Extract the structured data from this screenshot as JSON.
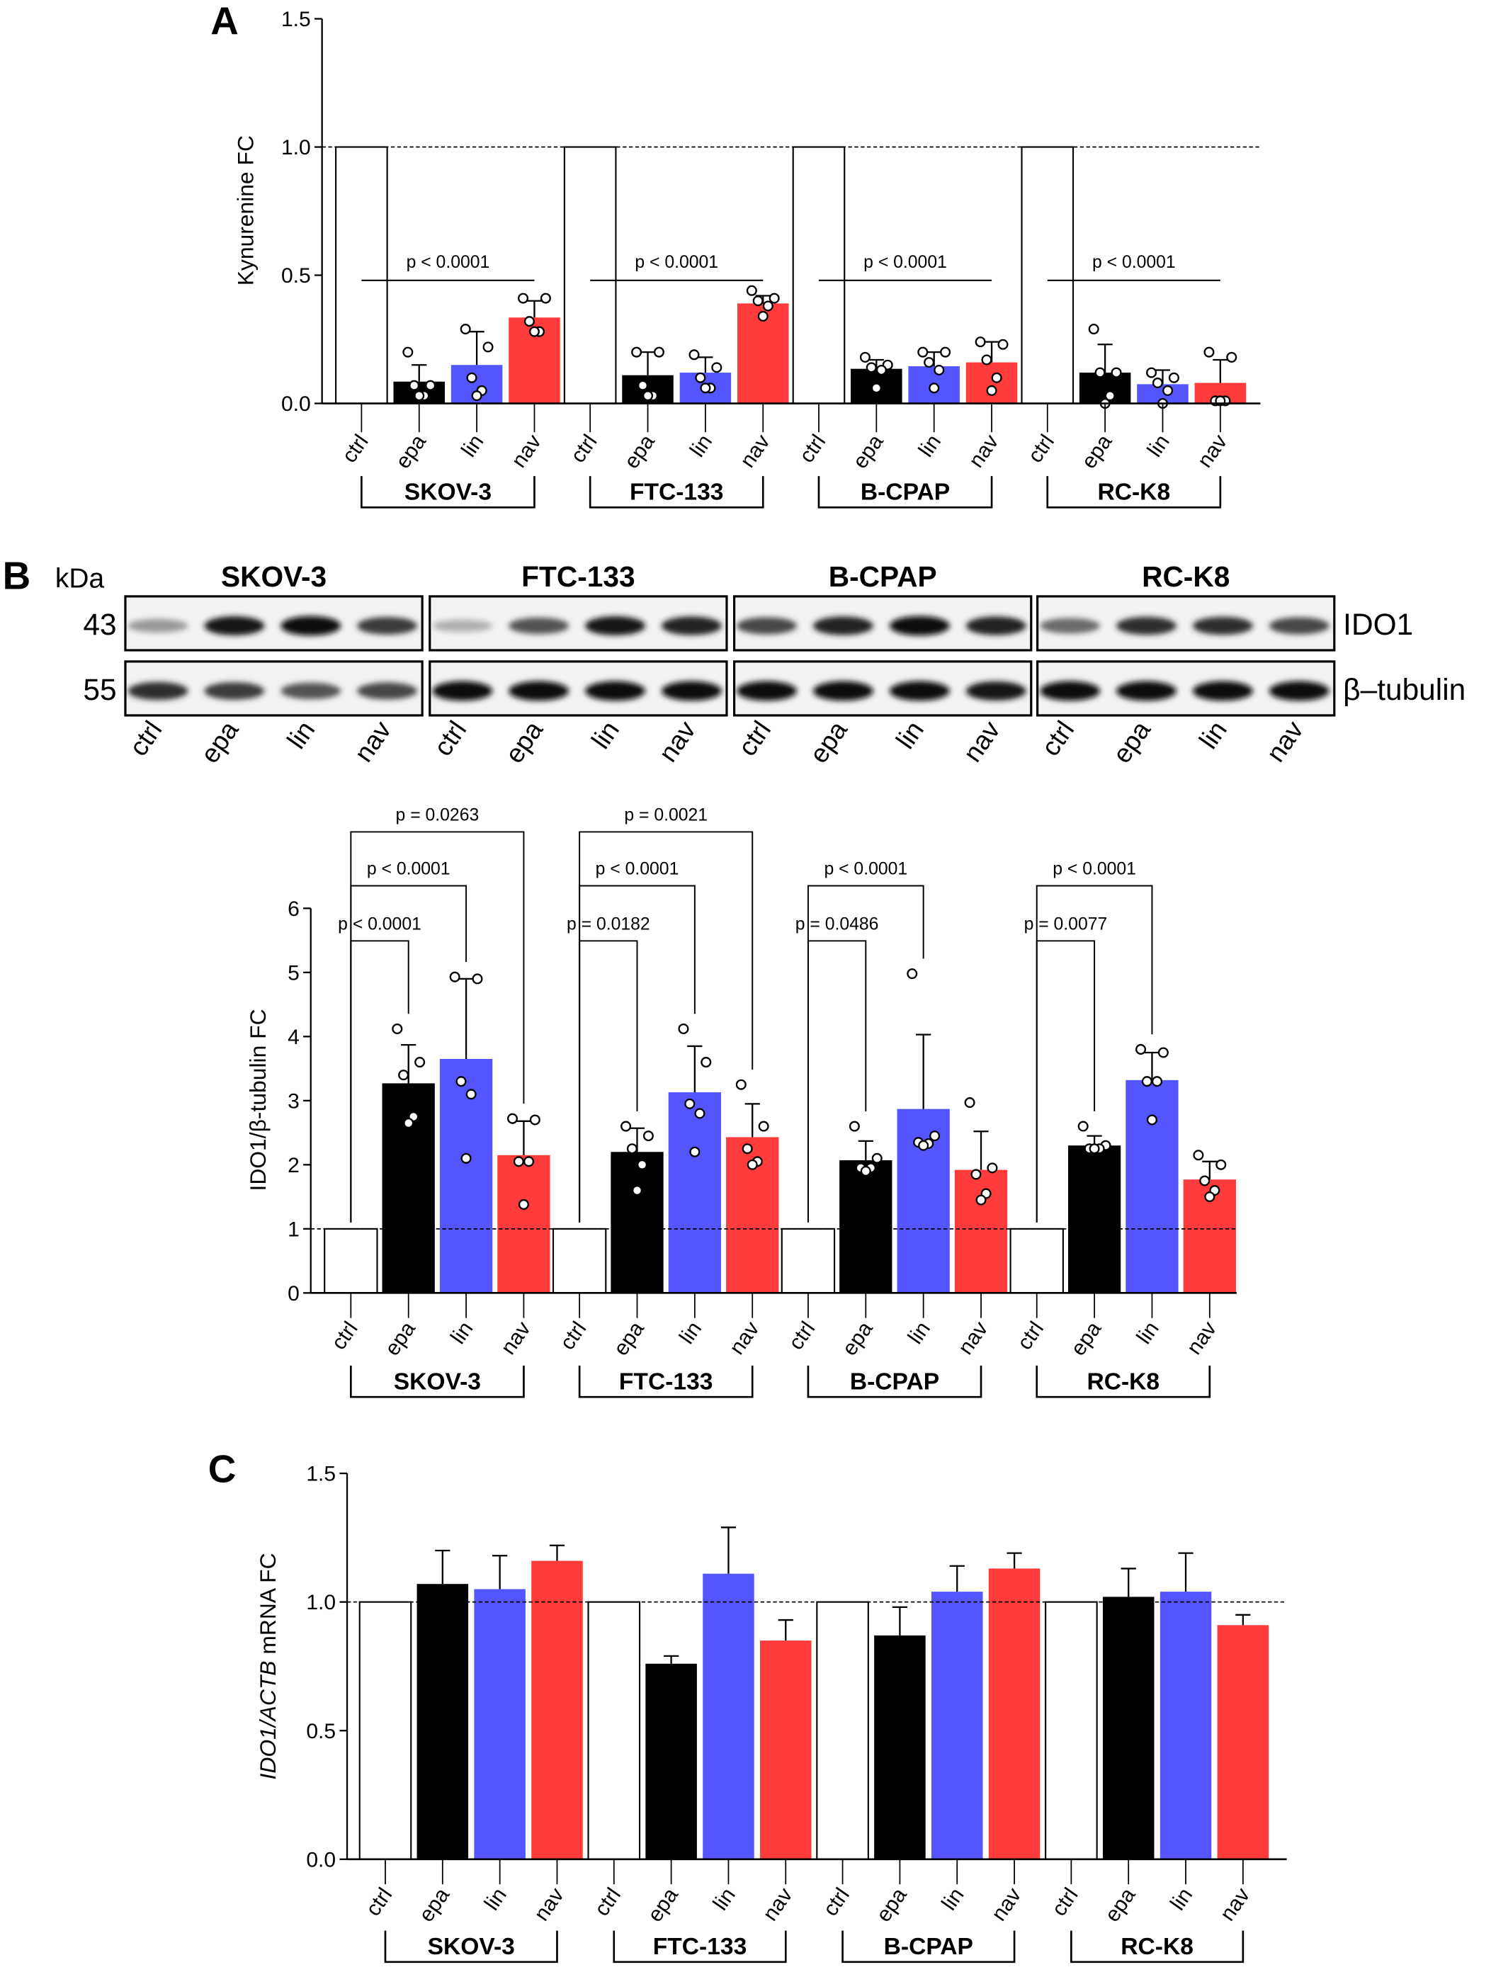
{
  "panel_labels": [
    "A",
    "B",
    "C"
  ],
  "conditions": [
    "ctrl",
    "epa",
    "lin",
    "nav"
  ],
  "cell_lines": [
    "SKOV-3",
    "FTC-133",
    "B-CPAP",
    "RC-K8"
  ],
  "colors": {
    "ctrl": "#ffffff",
    "epa": "#000000",
    "lin": "#5555ff",
    "nav": "#ff3b3b"
  },
  "western_blot": {
    "kda_label": "kDa",
    "rows": [
      {
        "kda": "43",
        "protein": "IDO1",
        "intensity": [
          [
            0.35,
            0.9,
            0.95,
            0.75
          ],
          [
            0.25,
            0.65,
            0.9,
            0.85
          ],
          [
            0.7,
            0.85,
            0.95,
            0.85
          ],
          [
            0.55,
            0.8,
            0.8,
            0.7
          ]
        ]
      },
      {
        "kda": "55",
        "protein": "β–tubulin",
        "intensity": [
          [
            0.8,
            0.75,
            0.65,
            0.7
          ],
          [
            0.95,
            0.95,
            0.95,
            0.95
          ],
          [
            0.95,
            0.95,
            0.95,
            0.9
          ],
          [
            0.95,
            0.95,
            0.95,
            0.95
          ]
        ]
      }
    ]
  },
  "chart_data": [
    {
      "type": "bar",
      "panel": "A",
      "ylabel": "Kynurenine FC",
      "ylabel_italic": "",
      "ylim": [
        0,
        1.5
      ],
      "yticks": [
        "0.0",
        "0.5",
        "1.0",
        "1.5"
      ],
      "tick_values": [
        0,
        0.5,
        1.0,
        1.5
      ],
      "reference_line": 1.0,
      "groups": [
        {
          "name": "SKOV-3",
          "mean": [
            1.0,
            0.085,
            0.15,
            0.335
          ],
          "sd_top": [
            null,
            0.15,
            0.28,
            0.4
          ],
          "points": [
            [],
            [
              0.2,
              0.07,
              0.07,
              0.03,
              0.03
            ],
            [
              0.29,
              0.22,
              0.1,
              0.05,
              0.03
            ],
            [
              0.41,
              0.41,
              0.32,
              0.28,
              0.28
            ]
          ]
        },
        {
          "name": "FTC-133",
          "mean": [
            1.0,
            0.11,
            0.12,
            0.39
          ],
          "sd_top": [
            null,
            0.2,
            0.18,
            0.42
          ],
          "points": [
            [],
            [
              0.2,
              0.2,
              0.07,
              0.03,
              0.03
            ],
            [
              0.19,
              0.14,
              0.1,
              0.06,
              0.06
            ],
            [
              0.44,
              0.41,
              0.4,
              0.38,
              0.34
            ]
          ]
        },
        {
          "name": "B-CPAP",
          "mean": [
            1.0,
            0.135,
            0.145,
            0.16
          ],
          "sd_top": [
            null,
            0.17,
            0.2,
            0.24
          ],
          "points": [
            [],
            [
              0.18,
              0.15,
              0.14,
              0.13,
              0.06
            ],
            [
              0.2,
              0.2,
              0.16,
              0.13,
              0.06
            ],
            [
              0.24,
              0.23,
              0.17,
              0.1,
              0.05
            ]
          ]
        },
        {
          "name": "RC-K8",
          "mean": [
            1.0,
            0.12,
            0.075,
            0.08
          ],
          "sd_top": [
            null,
            0.23,
            0.13,
            0.17
          ],
          "points": [
            [],
            [
              0.29,
              0.12,
              0.12,
              0.03,
              0.0
            ],
            [
              0.12,
              0.1,
              0.08,
              0.05,
              0.0
            ],
            [
              0.2,
              0.18,
              0.01,
              0.01,
              0.01
            ]
          ]
        }
      ],
      "significance": [
        {
          "group": 0,
          "from": "ctrl",
          "to": "nav",
          "label": "p < 0.0001",
          "style": "line"
        },
        {
          "group": 1,
          "from": "ctrl",
          "to": "nav",
          "label": "p < 0.0001",
          "style": "line"
        },
        {
          "group": 2,
          "from": "ctrl",
          "to": "nav",
          "label": "p < 0.0001",
          "style": "line"
        },
        {
          "group": 3,
          "from": "ctrl",
          "to": "nav",
          "label": "p < 0.0001",
          "style": "line"
        }
      ]
    },
    {
      "type": "bar",
      "panel": "B",
      "ylabel": "IDO1/β-tubulin FC",
      "ylabel_italic": "",
      "ylim": [
        0,
        6
      ],
      "yticks": [
        "0",
        "1",
        "2",
        "3",
        "4",
        "5",
        "6"
      ],
      "tick_values": [
        0,
        1,
        2,
        3,
        4,
        5,
        6
      ],
      "reference_line": 1.0,
      "groups": [
        {
          "name": "SKOV-3",
          "mean": [
            1.0,
            3.27,
            3.65,
            2.15
          ],
          "sd_top": [
            null,
            3.87,
            4.9,
            2.68
          ],
          "points": [
            [],
            [
              4.12,
              3.6,
              3.4,
              2.75,
              2.65
            ],
            [
              4.93,
              4.9,
              3.3,
              3.1,
              2.1
            ],
            [
              2.72,
              2.7,
              2.05,
              2.05,
              1.38
            ]
          ]
        },
        {
          "name": "FTC-133",
          "mean": [
            1.0,
            2.2,
            3.13,
            2.43
          ],
          "sd_top": [
            null,
            2.57,
            3.85,
            2.95
          ],
          "points": [
            [],
            [
              2.6,
              2.45,
              2.25,
              2.0,
              1.6
            ],
            [
              4.12,
              3.6,
              2.95,
              2.8,
              2.2
            ],
            [
              3.25,
              2.6,
              2.25,
              2.05,
              2.0
            ]
          ]
        },
        {
          "name": "B-CPAP",
          "mean": [
            1.0,
            2.07,
            2.87,
            1.92
          ],
          "sd_top": [
            null,
            2.37,
            4.03,
            2.52
          ],
          "points": [
            [],
            [
              2.6,
              2.1,
              1.95,
              1.95,
              1.9
            ],
            [
              4.98,
              2.45,
              2.35,
              2.33,
              2.3
            ],
            [
              2.97,
              1.95,
              1.85,
              1.55,
              1.45
            ]
          ]
        },
        {
          "name": "RC-K8",
          "mean": [
            1.0,
            2.3,
            3.32,
            1.77
          ],
          "sd_top": [
            null,
            2.45,
            3.75,
            2.05
          ],
          "points": [
            [],
            [
              2.6,
              2.3,
              2.25,
              2.25,
              2.25
            ],
            [
              3.8,
              3.75,
              3.3,
              3.3,
              2.7
            ],
            [
              2.15,
              2.0,
              1.75,
              1.6,
              1.5
            ]
          ]
        }
      ],
      "significance": [
        {
          "group": 0,
          "from": "ctrl",
          "to": "epa",
          "label": "p < 0.0001",
          "level": 0
        },
        {
          "group": 0,
          "from": "ctrl",
          "to": "lin",
          "label": "p < 0.0001",
          "level": 1
        },
        {
          "group": 0,
          "from": "ctrl",
          "to": "nav",
          "label": "p = 0.0263",
          "level": 2
        },
        {
          "group": 1,
          "from": "ctrl",
          "to": "epa",
          "label": "p = 0.0182",
          "level": 0
        },
        {
          "group": 1,
          "from": "ctrl",
          "to": "lin",
          "label": "p < 0.0001",
          "level": 1
        },
        {
          "group": 1,
          "from": "ctrl",
          "to": "nav",
          "label": "p = 0.0021",
          "level": 2
        },
        {
          "group": 2,
          "from": "ctrl",
          "to": "epa",
          "label": "p = 0.0486",
          "level": 0
        },
        {
          "group": 2,
          "from": "ctrl",
          "to": "lin",
          "label": "p < 0.0001",
          "level": 1
        },
        {
          "group": 3,
          "from": "ctrl",
          "to": "epa",
          "label": "p = 0.0077",
          "level": 0
        },
        {
          "group": 3,
          "from": "ctrl",
          "to": "lin",
          "label": "p < 0.0001",
          "level": 1
        }
      ]
    },
    {
      "type": "bar",
      "panel": "C",
      "ylabel": " mRNA FC",
      "ylabel_italic": "IDO1/ACTB",
      "ylim": [
        0,
        1.5
      ],
      "yticks": [
        "0.0",
        "0.5",
        "1.0",
        "1.5"
      ],
      "tick_values": [
        0,
        0.5,
        1.0,
        1.5
      ],
      "reference_line": 1.0,
      "groups": [
        {
          "name": "SKOV-3",
          "mean": [
            1.0,
            1.07,
            1.05,
            1.16
          ],
          "sd_top": [
            null,
            1.2,
            1.18,
            1.22
          ],
          "points": [
            [],
            [],
            [],
            []
          ]
        },
        {
          "name": "FTC-133",
          "mean": [
            1.0,
            0.76,
            1.11,
            0.85
          ],
          "sd_top": [
            null,
            0.79,
            1.29,
            0.93
          ],
          "points": [
            [],
            [],
            [],
            []
          ]
        },
        {
          "name": "B-CPAP",
          "mean": [
            1.0,
            0.87,
            1.04,
            1.13
          ],
          "sd_top": [
            null,
            0.98,
            1.14,
            1.19
          ],
          "points": [
            [],
            [],
            [],
            []
          ]
        },
        {
          "name": "RC-K8",
          "mean": [
            1.0,
            1.02,
            1.04,
            0.91
          ],
          "sd_top": [
            null,
            1.13,
            1.19,
            0.95
          ],
          "points": [
            [],
            [],
            [],
            []
          ]
        }
      ],
      "significance": []
    }
  ]
}
